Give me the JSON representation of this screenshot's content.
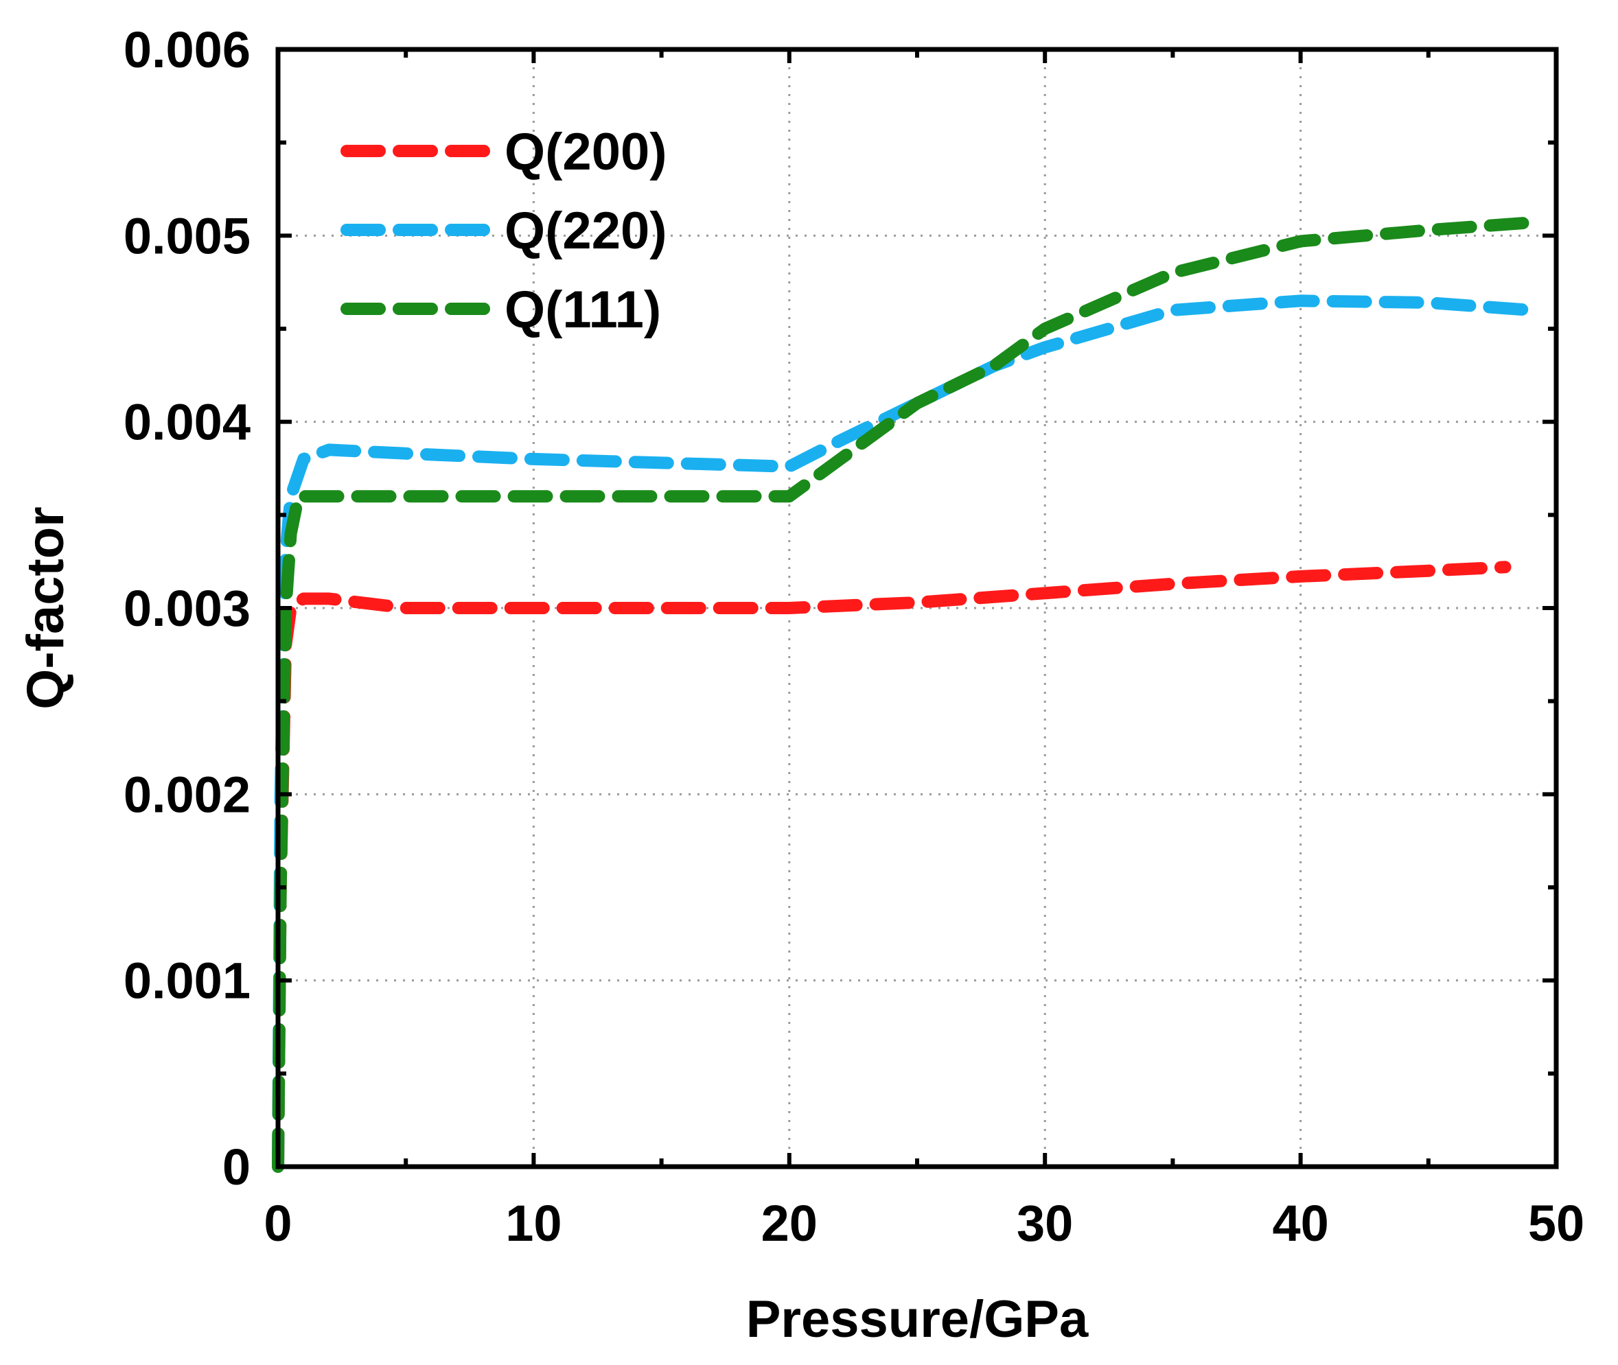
{
  "chart_data": {
    "type": "line",
    "title": "",
    "xlabel": "Pressure/GPa",
    "ylabel": "Q-factor",
    "xlim": [
      0,
      50
    ],
    "ylim": [
      0,
      0.006
    ],
    "xticks": [
      0,
      10,
      20,
      30,
      40,
      50
    ],
    "xtick_labels": [
      "0",
      "10",
      "20",
      "30",
      "40",
      "50"
    ],
    "yticks": [
      0,
      0.001,
      0.002,
      0.003,
      0.004,
      0.005,
      0.006
    ],
    "ytick_labels": [
      "0",
      "0.001",
      "0.002",
      "0.003",
      "0.004",
      "0.005",
      "0.006"
    ],
    "grid": true,
    "legend_position": "top-left",
    "series": [
      {
        "name": "Q(200)",
        "color": "#ff1a1a",
        "style": "dashed",
        "x": [
          0,
          0.1,
          0.3,
          0.5,
          1,
          2,
          5,
          10,
          15,
          20,
          25,
          30,
          35,
          40,
          45,
          48
        ],
        "y": [
          0,
          0.0015,
          0.0028,
          0.003,
          0.00305,
          0.00305,
          0.003,
          0.003,
          0.003,
          0.003,
          0.00303,
          0.00308,
          0.00313,
          0.00317,
          0.0032,
          0.00322
        ]
      },
      {
        "name": "Q(220)",
        "color": "#1ab0f0",
        "style": "dashed",
        "x": [
          0,
          0.1,
          0.3,
          0.5,
          1,
          2,
          5,
          10,
          15,
          20,
          22,
          25,
          28,
          30,
          35,
          40,
          45,
          49
        ],
        "y": [
          0,
          0.002,
          0.0033,
          0.0036,
          0.0038,
          0.00385,
          0.00383,
          0.0038,
          0.00378,
          0.00376,
          0.0039,
          0.0041,
          0.0043,
          0.0044,
          0.0046,
          0.00465,
          0.00464,
          0.0046
        ]
      },
      {
        "name": "Q(111)",
        "color": "#1a8a1a",
        "style": "dashed",
        "x": [
          0,
          0.1,
          0.3,
          0.5,
          0.8,
          1.5,
          5,
          10,
          15,
          20,
          22,
          25,
          28,
          30,
          35,
          40,
          45,
          49
        ],
        "y": [
          0,
          0.0015,
          0.003,
          0.0034,
          0.0036,
          0.0036,
          0.0036,
          0.0036,
          0.0036,
          0.0036,
          0.0038,
          0.0041,
          0.0043,
          0.0045,
          0.0048,
          0.00497,
          0.00503,
          0.00507
        ]
      }
    ]
  }
}
